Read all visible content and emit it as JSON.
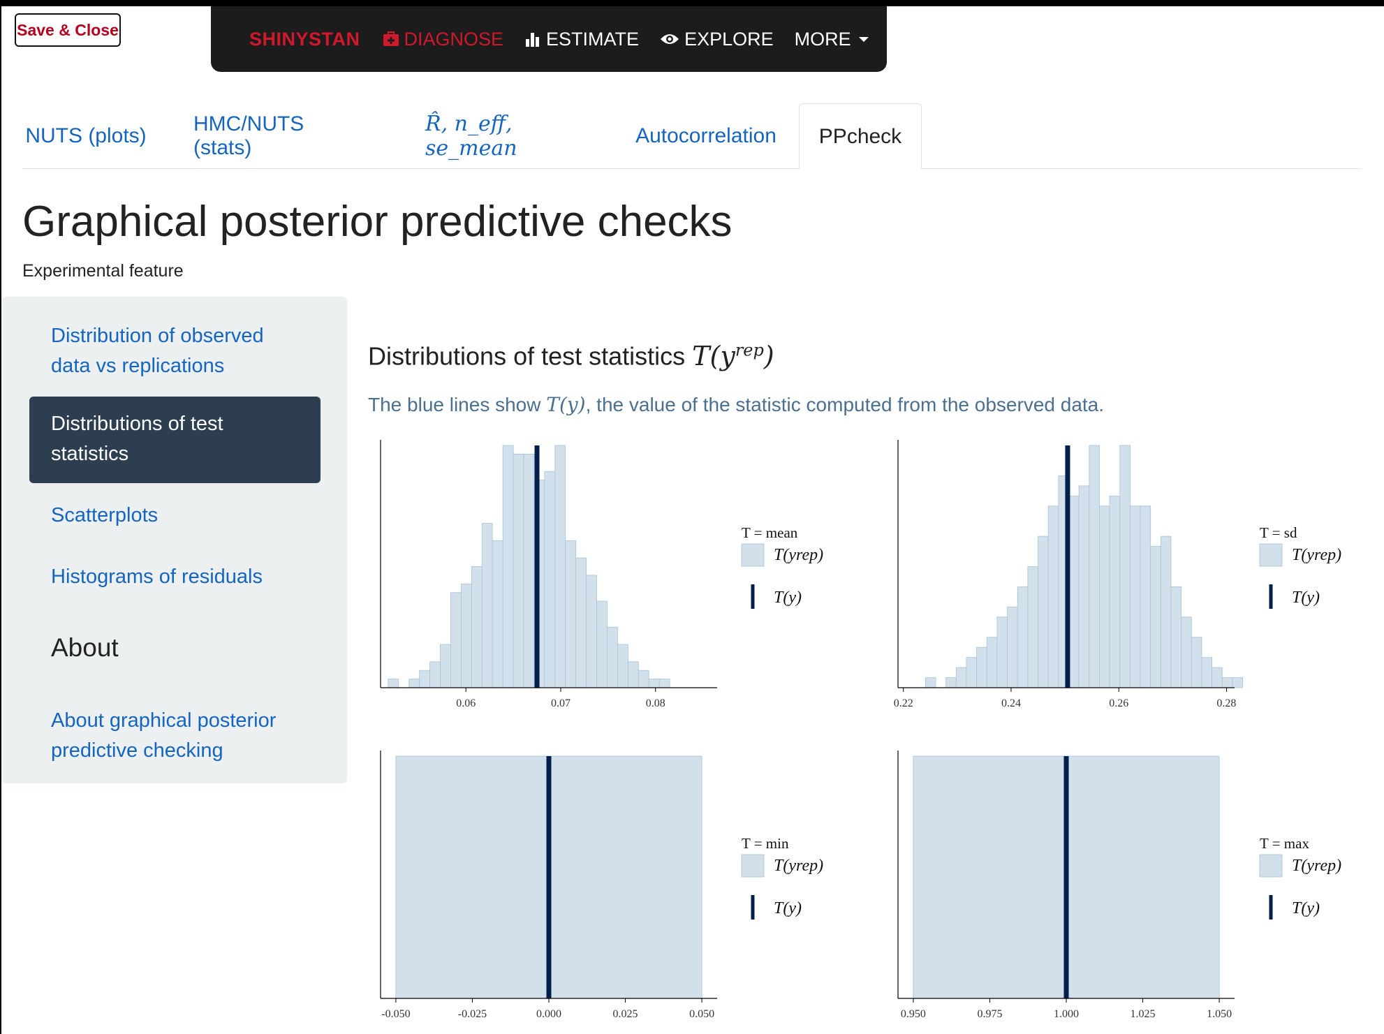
{
  "app": {
    "save_close": "Save & Close",
    "brand": "SHINYSTAN",
    "nav": {
      "diagnose": "DIAGNOSE",
      "estimate": "ESTIMATE",
      "explore": "EXPLORE",
      "more": "MORE"
    }
  },
  "tabs": [
    {
      "label": "NUTS (plots)"
    },
    {
      "label": "HMC/NUTS (stats)"
    },
    {
      "label": "R̂, n_eff, se_mean"
    },
    {
      "label": "Autocorrelation"
    },
    {
      "label": "PPcheck"
    }
  ],
  "page": {
    "title": "Graphical posterior predictive checks",
    "subtitle": "Experimental feature"
  },
  "sidebar": {
    "item1_line1": "Distribution of observed",
    "item1_line2": "data vs replications",
    "item2_line1": "Distributions of test",
    "item2_line2": "statistics",
    "item3": "Scatterplots",
    "item4": "Histograms of residuals",
    "about_heading": "About",
    "about_line1": "About graphical posterior",
    "about_line2": "predictive checking"
  },
  "section": {
    "title_prefix": "Distributions of test statistics",
    "description_prefix": "The blue lines show",
    "description_suffix": ", the value of the statistic computed from the observed data."
  },
  "colors": {
    "hist_fill": "#d1e0eb",
    "hist_stroke": "#a9c3d6",
    "observed_line": "#011f4b",
    "link_blue": "#1565c0",
    "active_bg": "#2c3e50",
    "brand_red": "#d2182c"
  },
  "chart_data": [
    {
      "type": "bar",
      "statistic": "mean",
      "legend_title": "T = mean",
      "xlim": [
        0.051,
        0.0865
      ],
      "bin_start": 0.0518,
      "bin_width": 0.0011,
      "counts": [
        1,
        0,
        1,
        2,
        3,
        5,
        11,
        12,
        14,
        19,
        17,
        28,
        27,
        27,
        24,
        25,
        28,
        17,
        15,
        13,
        10,
        7,
        5,
        3,
        2,
        1,
        1,
        0
      ],
      "ymax": 28,
      "observed": 0.0675,
      "ticks": [
        0.06,
        0.07,
        0.08
      ],
      "tick_labels": [
        "0.06",
        "0.07",
        "0.08"
      ]
    },
    {
      "type": "bar",
      "statistic": "sd",
      "legend_title": "T = sd",
      "xlim": [
        0.219,
        0.2815
      ],
      "bin_start": 0.2222,
      "bin_width": 0.0019,
      "counts": [
        0,
        1,
        0,
        1,
        2,
        3,
        4,
        5,
        7,
        8,
        10,
        12,
        15,
        18,
        21,
        19,
        20,
        24,
        18,
        19,
        24,
        18,
        18,
        14,
        15,
        10,
        7,
        5,
        3,
        2,
        1,
        1,
        0
      ],
      "ymax": 24,
      "observed": 0.2505,
      "ticks": [
        0.22,
        0.24,
        0.26,
        0.28
      ],
      "tick_labels": [
        "0.22",
        "0.24",
        "0.26",
        "0.28"
      ]
    },
    {
      "type": "bar",
      "statistic": "min",
      "legend_title": "T = min",
      "xlim": [
        -0.055,
        0.055
      ],
      "bin_start": -0.05,
      "bin_width": 0.1,
      "counts": [
        1
      ],
      "ymax": 1,
      "observed": 0.0,
      "ticks": [
        -0.05,
        -0.025,
        0.0,
        0.025,
        0.05
      ],
      "tick_labels": [
        "-0.050",
        "-0.025",
        "0.000",
        "0.025",
        "0.050"
      ]
    },
    {
      "type": "bar",
      "statistic": "max",
      "legend_title": "T = max",
      "xlim": [
        0.945,
        1.055
      ],
      "bin_start": 0.95,
      "bin_width": 0.1,
      "counts": [
        1
      ],
      "ymax": 1,
      "observed": 1.0,
      "ticks": [
        0.95,
        0.975,
        1.0,
        1.025,
        1.05
      ],
      "tick_labels": [
        "0.950",
        "0.975",
        "1.000",
        "1.025",
        "1.050"
      ]
    }
  ]
}
